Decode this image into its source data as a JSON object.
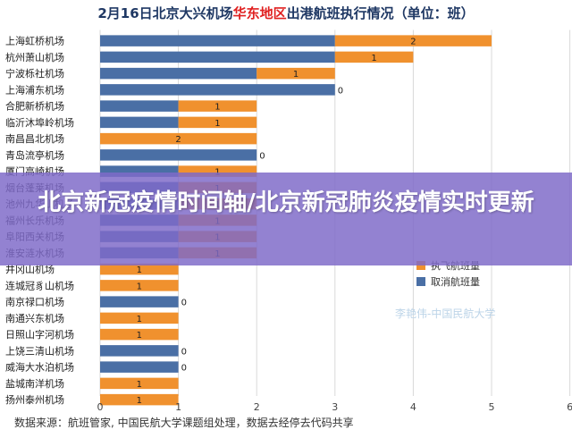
{
  "title": {
    "prefix": "2月16日北京大兴机场",
    "highlight": "华东地区",
    "suffix": "出港航班执行情况（单位：班）"
  },
  "banner": {
    "text": "北京新冠疫情时间轴/北京新冠肺炎疫情实时更新"
  },
  "watermark": "李艳伟-中国民航大学",
  "source": "数据来源：航班管家, 中国民航大学课题组处理，数据去经停去代码共享",
  "colors": {
    "cancelled": "#4a6fa5",
    "executed": "#f0912e",
    "banner": "#7e6ac8"
  },
  "chart_data": {
    "type": "bar",
    "orientation": "horizontal",
    "stacked": true,
    "categories": [
      "上海虹桥机场",
      "杭州萧山机场",
      "宁波栎社机场",
      "上海浦东机场",
      "合肥新桥机场",
      "临沂沐埠岭机场",
      "南昌昌北机场",
      "青岛流亭机场",
      "厦门高崎机场",
      "烟台蓬莱机场",
      "池州九华山机场",
      "福州长乐机场",
      "阜阳西关机场",
      "淮安涟水机场",
      "井冈山机场",
      "连城冠豸山机场",
      "南京禄口机场",
      "南通兴东机场",
      "日照山字河机场",
      "上饶三清山机场",
      "威海大水泊机场",
      "盐城南洋机场",
      "扬州泰州机场"
    ],
    "series": [
      {
        "name": "取消航班量",
        "values": [
          3,
          3,
          2,
          3,
          1,
          1,
          0,
          2,
          1,
          1,
          1,
          1,
          1,
          1,
          0,
          0,
          1,
          0,
          0,
          1,
          1,
          0,
          0
        ]
      },
      {
        "name": "执飞航班量",
        "values": [
          2,
          1,
          1,
          0,
          1,
          1,
          2,
          0,
          1,
          1,
          1,
          1,
          1,
          1,
          1,
          1,
          0,
          1,
          1,
          0,
          0,
          1,
          1
        ]
      }
    ],
    "data_labels": [
      "2",
      "1",
      "1",
      "0",
      "1",
      "1",
      "2",
      "0",
      "1",
      "1",
      "1",
      "1",
      "1",
      "1",
      "1",
      "1",
      "0",
      "1",
      "1",
      "0",
      "0",
      "1",
      "1"
    ],
    "xticks": [
      "0",
      "1",
      "2",
      "3",
      "4",
      "5",
      "6"
    ],
    "xlim": [
      0,
      6
    ],
    "legend": {
      "position": "right",
      "entries": [
        "执飞航班量",
        "取消航班量"
      ]
    },
    "grid": "vertical"
  }
}
